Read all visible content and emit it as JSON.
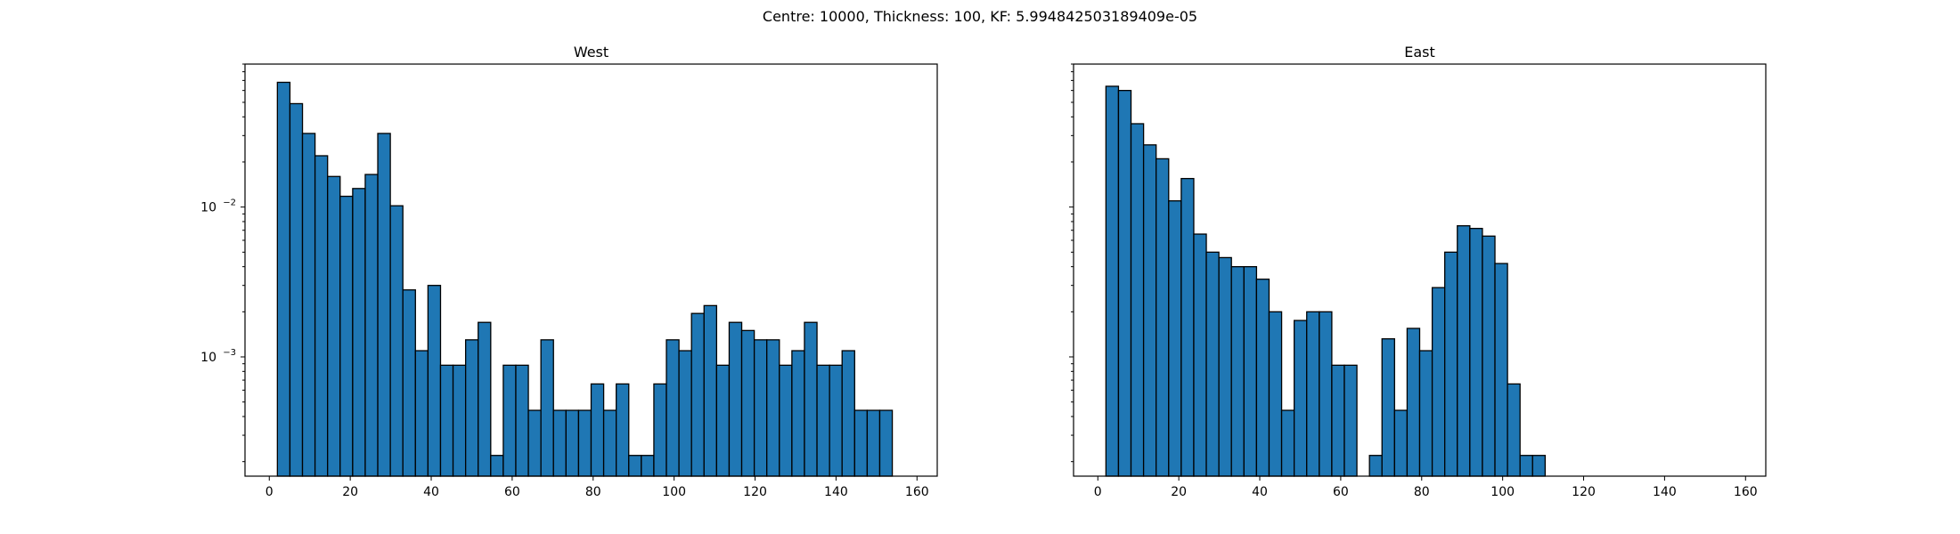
{
  "figure": {
    "suptitle": "Centre: 10000, Thickness: 100, KF: 5.994842503189409e-05"
  },
  "colors": {
    "bar_fill": "#1f77b4",
    "bar_edge": "#000000",
    "axes": "#000000",
    "background": "#ffffff"
  },
  "chart_data": [
    {
      "type": "bar",
      "title": "West",
      "xlabel": "",
      "ylabel": "",
      "yscale": "log",
      "xlim": [
        -6,
        165
      ],
      "ylim": [
        0.00016,
        0.09
      ],
      "grid": false,
      "x_ticks": [
        0,
        20,
        40,
        60,
        80,
        100,
        120,
        140,
        160
      ],
      "y_ticks": [
        {
          "value": 0.01,
          "base": "10",
          "exp": "−2"
        },
        {
          "value": 0.001,
          "base": "10",
          "exp": "−3"
        }
      ],
      "bin_start": 2,
      "bin_width": 3.1,
      "values": [
        0.068,
        0.049,
        0.031,
        0.022,
        0.016,
        0.0118,
        0.0133,
        0.0165,
        0.031,
        0.0102,
        0.0028,
        0.0011,
        0.003,
        0.00088,
        0.00088,
        0.0013,
        0.0017,
        0.00022,
        0.00088,
        0.00088,
        0.00044,
        0.0013,
        0.00044,
        0.00044,
        0.00044,
        0.00066,
        0.00044,
        0.00066,
        0.00022,
        0.00022,
        0.00066,
        0.0013,
        0.0011,
        0.00195,
        0.0022,
        0.00088,
        0.0017,
        0.0015,
        0.0013,
        0.0013,
        0.00088,
        0.0011,
        0.0017,
        0.00088,
        0.00088,
        0.0011,
        0.00044,
        0.00044,
        0.00044
      ]
    },
    {
      "type": "bar",
      "title": "East",
      "xlabel": "",
      "ylabel": "",
      "yscale": "log",
      "xlim": [
        -6,
        165
      ],
      "ylim": [
        0.00016,
        0.09
      ],
      "grid": false,
      "x_ticks": [
        0,
        20,
        40,
        60,
        80,
        100,
        120,
        140,
        160
      ],
      "y_ticks": [
        {
          "value": 0.01,
          "base": "10",
          "exp": "−2"
        },
        {
          "value": 0.001,
          "base": "10",
          "exp": "−3"
        }
      ],
      "bin_start": 2,
      "bin_width": 3.1,
      "values": [
        0.064,
        0.06,
        0.036,
        0.026,
        0.021,
        0.011,
        0.0155,
        0.0066,
        0.005,
        0.0046,
        0.004,
        0.004,
        0.0033,
        0.002,
        0.00044,
        0.00175,
        0.002,
        0.002,
        0.00088,
        0.00088,
        0,
        0.00022,
        0.00132,
        0.00044,
        0.00155,
        0.0011,
        0.0029,
        0.005,
        0.0075,
        0.0072,
        0.0064,
        0.0042,
        0.00066,
        0.00022,
        0.00022
      ]
    }
  ]
}
